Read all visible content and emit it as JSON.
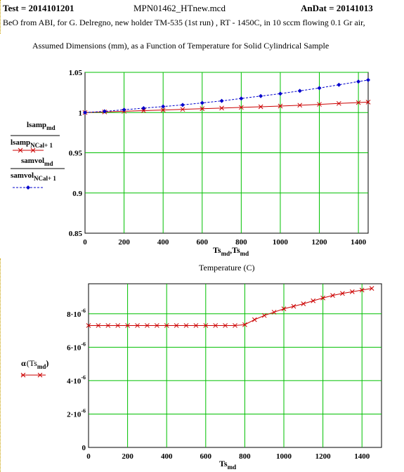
{
  "header": {
    "test": "Test  = 2014101201",
    "file": "MPN01462_HTnew.mcd",
    "andat": "AnDat  = 20141013",
    "description": "BeO from ABI, for G. Delregno, new holder TM-535 (1st run) , RT - 1450C, in 10 sccm flowing 0.1 Gr air,",
    "subtitle": "Assumed  Dimensions (mm),   as a Function of Temperature for Solid Cylindrical Sample"
  },
  "chart_data": [
    {
      "type": "line",
      "xlabel": "Ts_md, Ts_md",
      "xlabel_sub": "Temperature (C)",
      "xlim": [
        0,
        1450
      ],
      "ylim": [
        0.85,
        1.05
      ],
      "xticks": [
        "0",
        "200",
        "400",
        "600",
        "800",
        "1000",
        "1200",
        "1400"
      ],
      "yticks": [
        "0.85",
        "0.9",
        "0.95",
        "1",
        "1.05"
      ],
      "grid": true,
      "series": [
        {
          "name": "lsamp_md / lsamp_NCal+1",
          "color": "#cc0000",
          "marker": "x",
          "x": [
            0,
            100,
            200,
            300,
            400,
            500,
            600,
            700,
            800,
            900,
            1000,
            1100,
            1200,
            1300,
            1400,
            1450
          ],
          "y": [
            1.0,
            1.0008,
            1.0016,
            1.0024,
            1.0032,
            1.004,
            1.0048,
            1.0056,
            1.0064,
            1.0072,
            1.0081,
            1.0091,
            1.0102,
            1.0113,
            1.0124,
            1.013
          ]
        },
        {
          "name": "samvol_md / samvol_NCal+1",
          "color": "#0000cc",
          "marker": "diamond",
          "x": [
            0,
            100,
            200,
            300,
            400,
            500,
            600,
            700,
            800,
            900,
            1000,
            1100,
            1200,
            1300,
            1400,
            1450
          ],
          "y": [
            1.0,
            1.0015,
            1.0035,
            1.0055,
            1.0075,
            1.0095,
            1.012,
            1.0145,
            1.0175,
            1.0205,
            1.0235,
            1.027,
            1.0305,
            1.0345,
            1.0385,
            1.0405
          ]
        }
      ]
    },
    {
      "type": "line",
      "xlabel": "Ts_md",
      "ylabel": "α(Ts_md)",
      "xlim": [
        0,
        1500
      ],
      "ylim": [
        0,
        9.8
      ],
      "yunit_exponent": -6,
      "xticks": [
        "0",
        "200",
        "400",
        "600",
        "800",
        "1000",
        "1200",
        "1400"
      ],
      "yticks": [
        "0",
        "2·10⁻⁶",
        "4·10⁻⁶",
        "6·10⁻⁶",
        "8·10⁻⁶"
      ],
      "grid": true,
      "series": [
        {
          "name": "α(Ts_md)",
          "color": "#cc0000",
          "marker": "x",
          "x": [
            0,
            50,
            100,
            150,
            200,
            250,
            300,
            350,
            400,
            450,
            500,
            550,
            600,
            650,
            700,
            750,
            800,
            850,
            900,
            950,
            1000,
            1050,
            1100,
            1150,
            1200,
            1250,
            1300,
            1350,
            1400,
            1450
          ],
          "y": [
            7.3,
            7.3,
            7.3,
            7.3,
            7.3,
            7.3,
            7.3,
            7.3,
            7.3,
            7.3,
            7.3,
            7.3,
            7.3,
            7.3,
            7.3,
            7.3,
            7.35,
            7.65,
            7.9,
            8.1,
            8.3,
            8.45,
            8.6,
            8.78,
            8.95,
            9.1,
            9.22,
            9.32,
            9.42,
            9.52
          ]
        }
      ]
    }
  ]
}
